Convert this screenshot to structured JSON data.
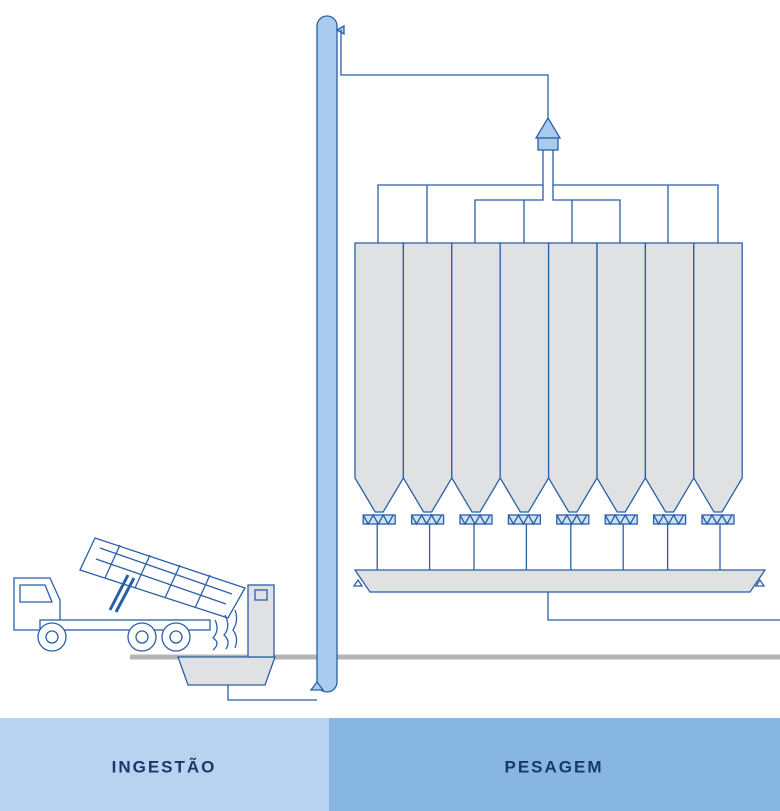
{
  "sections": {
    "ingestion": "INGESTÃO",
    "weighing": "PESAGEM"
  }
}
